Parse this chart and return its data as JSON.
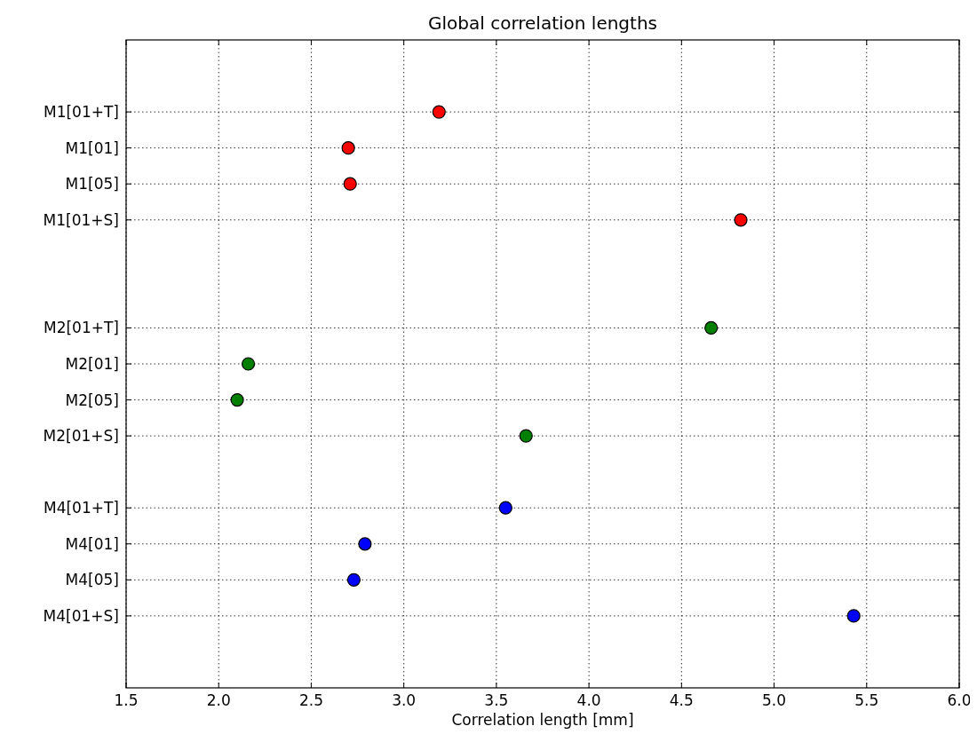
{
  "chart_data": {
    "type": "scatter",
    "orientation": "horizontal",
    "title": "Global correlation lengths",
    "xlabel": "Correlation length [mm]",
    "xlim": [
      1.5,
      6.0
    ],
    "xticks": [
      {
        "value": 1.5,
        "label": "1.5"
      },
      {
        "value": 2,
        "label": "2.0"
      },
      {
        "value": 2.5,
        "label": "2.5"
      },
      {
        "value": 3,
        "label": "3.0"
      },
      {
        "value": 3.5,
        "label": "3.5"
      },
      {
        "value": 4,
        "label": "4.0"
      },
      {
        "value": 4.5,
        "label": "4.5"
      },
      {
        "value": 5,
        "label": "5.0"
      },
      {
        "value": 5.5,
        "label": "5.5"
      },
      {
        "value": 6,
        "label": "6.0"
      }
    ],
    "categories": [
      "M1[01+T]",
      "M1[01]",
      "M1[05]",
      "M1[01+S]",
      null,
      null,
      "M2[01+T]",
      "M2[01]",
      "M2[05]",
      "M2[01+S]",
      null,
      "M4[01+T]",
      "M4[01]",
      "M4[05]",
      "M4[01+S]"
    ],
    "grid": true,
    "marker": "circle",
    "series": [
      {
        "color": "#ff0000",
        "values": [
          3.19,
          2.7,
          2.71,
          4.82,
          null,
          null,
          null,
          null,
          null,
          null,
          null,
          null,
          null,
          null,
          null
        ]
      },
      {
        "color": "#007f00",
        "values": [
          null,
          null,
          null,
          null,
          null,
          null,
          4.66,
          2.16,
          2.1,
          3.66,
          null,
          null,
          null,
          null,
          null
        ]
      },
      {
        "color": "#0000ff",
        "values": [
          null,
          null,
          null,
          null,
          null,
          null,
          null,
          null,
          null,
          null,
          null,
          3.55,
          2.79,
          2.73,
          5.43
        ]
      }
    ]
  }
}
